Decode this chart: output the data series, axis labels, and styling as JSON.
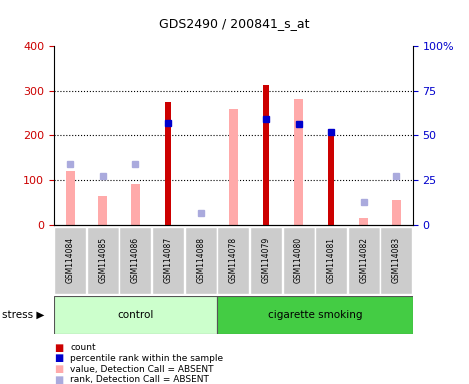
{
  "title": "GDS2490 / 200841_s_at",
  "samples": [
    "GSM114084",
    "GSM114085",
    "GSM114086",
    "GSM114087",
    "GSM114088",
    "GSM114078",
    "GSM114079",
    "GSM114080",
    "GSM114081",
    "GSM114082",
    "GSM114083"
  ],
  "count": [
    0,
    0,
    0,
    275,
    0,
    0,
    312,
    0,
    200,
    0,
    0
  ],
  "percentile_rank_left": [
    0,
    0,
    0,
    228,
    0,
    0,
    237,
    225,
    207,
    0,
    0
  ],
  "value_absent": [
    120,
    65,
    90,
    0,
    0,
    258,
    0,
    282,
    0,
    15,
    55
  ],
  "rank_absent_left": [
    135,
    110,
    135,
    0,
    25,
    0,
    0,
    0,
    0,
    50,
    110
  ],
  "left_ylim": [
    0,
    400
  ],
  "right_ylim": [
    0,
    100
  ],
  "left_yticks": [
    0,
    100,
    200,
    300,
    400
  ],
  "right_yticks": [
    0,
    25,
    50,
    75,
    100
  ],
  "right_yticklabels": [
    "0",
    "25",
    "50",
    "75",
    "100%"
  ],
  "count_color": "#cc0000",
  "percentile_color": "#0000cc",
  "value_absent_color": "#ffaaaa",
  "rank_absent_color": "#aaaadd",
  "left_tick_color": "#cc0000",
  "right_tick_color": "#0000cc",
  "control_color": "#ccffcc",
  "smoking_color": "#44cc44",
  "bg_color": "#cccccc",
  "bar_width": 0.5,
  "marker_size": 5
}
